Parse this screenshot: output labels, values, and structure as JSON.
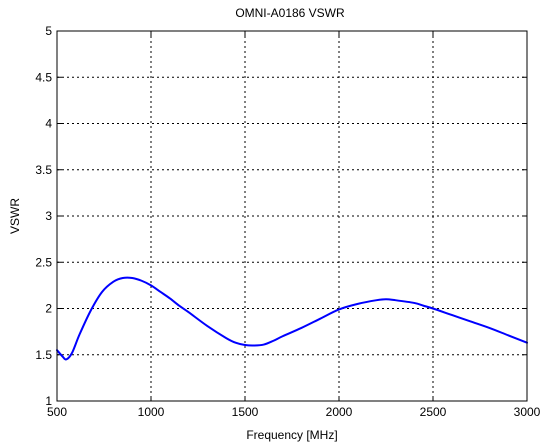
{
  "chart_data": {
    "type": "line",
    "title": "OMNI-A0186 VSWR",
    "xlabel": "Frequency [MHz]",
    "ylabel": "VSWR",
    "xlim": [
      500,
      3000
    ],
    "ylim": [
      1,
      5
    ],
    "grid": true,
    "x_ticks": [
      500,
      1000,
      1500,
      2000,
      2500,
      3000
    ],
    "x_tick_labels": [
      "500",
      "1000",
      "1500",
      "2000",
      "2500",
      "3000"
    ],
    "y_ticks": [
      1,
      1.5,
      2,
      2.5,
      3,
      3.5,
      4,
      4.5,
      5
    ],
    "y_tick_labels": [
      "1",
      "1.5",
      "2",
      "2.5",
      "3",
      "3.5",
      "4",
      "4.5",
      "5"
    ],
    "series": [
      {
        "color": "#0000ff",
        "x": [
          500,
          530,
          550,
          580,
          620,
          680,
          740,
          800,
          850,
          900,
          950,
          1000,
          1050,
          1100,
          1150,
          1200,
          1300,
          1400,
          1450,
          1500,
          1550,
          1600,
          1650,
          1700,
          1800,
          1900,
          2000,
          2100,
          2200,
          2250,
          2300,
          2400,
          2450,
          2500,
          2600,
          2700,
          2800,
          2900,
          3000
        ],
        "y": [
          1.55,
          1.48,
          1.45,
          1.52,
          1.72,
          1.98,
          2.18,
          2.29,
          2.33,
          2.33,
          2.3,
          2.25,
          2.18,
          2.11,
          2.03,
          1.96,
          1.81,
          1.68,
          1.63,
          1.605,
          1.6,
          1.61,
          1.65,
          1.7,
          1.79,
          1.89,
          1.99,
          2.05,
          2.09,
          2.1,
          2.09,
          2.06,
          2.03,
          2.0,
          1.93,
          1.86,
          1.79,
          1.71,
          1.63
        ]
      }
    ]
  }
}
